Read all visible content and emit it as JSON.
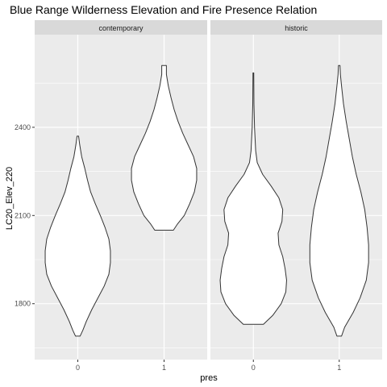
{
  "chart_data": {
    "type": "violin",
    "title": "Blue Range Wilderness Elevation and Fire Presence Relation",
    "xlabel": "pres",
    "ylabel": "LC20_Elev_220",
    "y_ticks": [
      1800,
      2100,
      2400
    ],
    "ylim": [
      1610,
      2715
    ],
    "categories": [
      "0",
      "1"
    ],
    "grid": true,
    "panel_background": "#ebebeb",
    "strip_background": "#d9d9d9",
    "violin_fill": "#ffffff",
    "violin_stroke": "#333333",
    "facets": [
      {
        "label": "contemporary",
        "violins": [
          {
            "x": "0",
            "min": 1690,
            "max": 2370,
            "profile": [
              [
                1690,
                0.06
              ],
              [
                1710,
                0.13
              ],
              [
                1740,
                0.22
              ],
              [
                1780,
                0.36
              ],
              [
                1820,
                0.52
              ],
              [
                1860,
                0.68
              ],
              [
                1900,
                0.8
              ],
              [
                1940,
                0.84
              ],
              [
                1980,
                0.84
              ],
              [
                2020,
                0.8
              ],
              [
                2060,
                0.7
              ],
              [
                2100,
                0.58
              ],
              [
                2140,
                0.45
              ],
              [
                2180,
                0.33
              ],
              [
                2220,
                0.25
              ],
              [
                2260,
                0.18
              ],
              [
                2300,
                0.1
              ],
              [
                2340,
                0.05
              ],
              [
                2370,
                0.02
              ]
            ]
          },
          {
            "x": "1",
            "min": 2050,
            "max": 2610,
            "profile": [
              [
                2050,
                0.24
              ],
              [
                2070,
                0.34
              ],
              [
                2100,
                0.52
              ],
              [
                2140,
                0.66
              ],
              [
                2180,
                0.78
              ],
              [
                2220,
                0.84
              ],
              [
                2260,
                0.84
              ],
              [
                2300,
                0.76
              ],
              [
                2340,
                0.62
              ],
              [
                2380,
                0.48
              ],
              [
                2420,
                0.36
              ],
              [
                2460,
                0.26
              ],
              [
                2500,
                0.18
              ],
              [
                2540,
                0.11
              ],
              [
                2580,
                0.06
              ],
              [
                2610,
                0.06
              ]
            ]
          }
        ]
      },
      {
        "label": "historic",
        "violins": [
          {
            "x": "0",
            "min": 1730,
            "max": 2585,
            "profile": [
              [
                1730,
                0.26
              ],
              [
                1760,
                0.5
              ],
              [
                1800,
                0.72
              ],
              [
                1840,
                0.84
              ],
              [
                1880,
                0.86
              ],
              [
                1920,
                0.82
              ],
              [
                1960,
                0.76
              ],
              [
                2000,
                0.66
              ],
              [
                2040,
                0.64
              ],
              [
                2080,
                0.74
              ],
              [
                2120,
                0.76
              ],
              [
                2160,
                0.66
              ],
              [
                2200,
                0.46
              ],
              [
                2240,
                0.24
              ],
              [
                2280,
                0.1
              ],
              [
                2320,
                0.06
              ],
              [
                2400,
                0.03
              ],
              [
                2480,
                0.015
              ],
              [
                2585,
                0.01
              ]
            ]
          },
          {
            "x": "1",
            "min": 1690,
            "max": 2610,
            "profile": [
              [
                1690,
                0.06
              ],
              [
                1720,
                0.14
              ],
              [
                1770,
                0.36
              ],
              [
                1820,
                0.54
              ],
              [
                1880,
                0.7
              ],
              [
                1940,
                0.76
              ],
              [
                2000,
                0.76
              ],
              [
                2060,
                0.72
              ],
              [
                2120,
                0.66
              ],
              [
                2180,
                0.56
              ],
              [
                2240,
                0.44
              ],
              [
                2300,
                0.34
              ],
              [
                2360,
                0.26
              ],
              [
                2420,
                0.18
              ],
              [
                2480,
                0.11
              ],
              [
                2540,
                0.06
              ],
              [
                2580,
                0.03
              ],
              [
                2610,
                0.02
              ]
            ]
          }
        ]
      }
    ]
  }
}
